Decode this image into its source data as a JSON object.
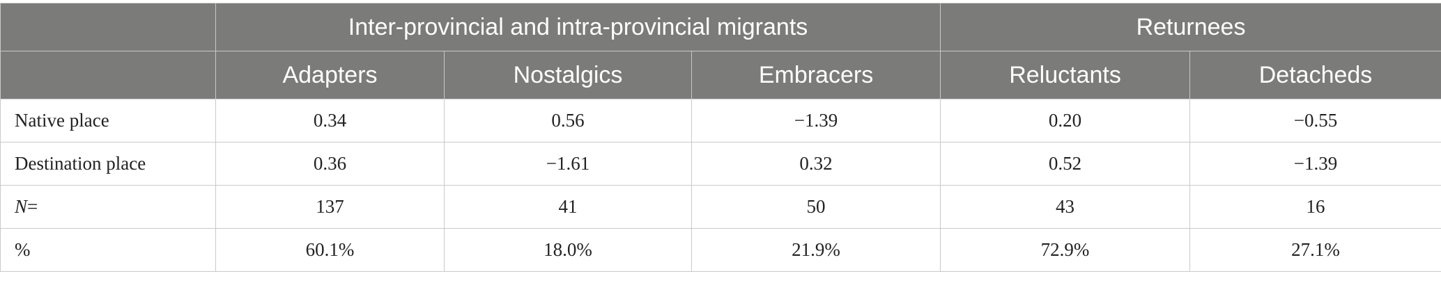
{
  "header": {
    "group_headers": [
      "",
      "Inter-provincial and intra-provincial migrants",
      "Returnees"
    ],
    "columns": [
      "",
      "Adapters",
      "Nostalgics",
      "Embracers",
      "Reluctants",
      "Detacheds"
    ]
  },
  "rows": [
    {
      "label": "Native place",
      "label_prefix": "",
      "label_suffix": "",
      "values": [
        "0.34",
        "0.56",
        "−1.39",
        "0.20",
        "−0.55"
      ]
    },
    {
      "label": "Destination place",
      "label_prefix": "",
      "label_suffix": "",
      "values": [
        "0.36",
        "−1.61",
        "0.32",
        "0.52",
        "−1.39"
      ]
    },
    {
      "label": "",
      "label_prefix": "N",
      "label_suffix": "=",
      "values": [
        "137",
        "41",
        "50",
        "43",
        "16"
      ]
    },
    {
      "label": "%",
      "label_prefix": "",
      "label_suffix": "",
      "values": [
        "60.1%",
        "18.0%",
        "21.9%",
        "72.9%",
        "27.1%"
      ]
    }
  ],
  "colors": {
    "header_background": "#7b7b7a",
    "header_text": "#ffffff",
    "border": "#c9c9c9"
  }
}
